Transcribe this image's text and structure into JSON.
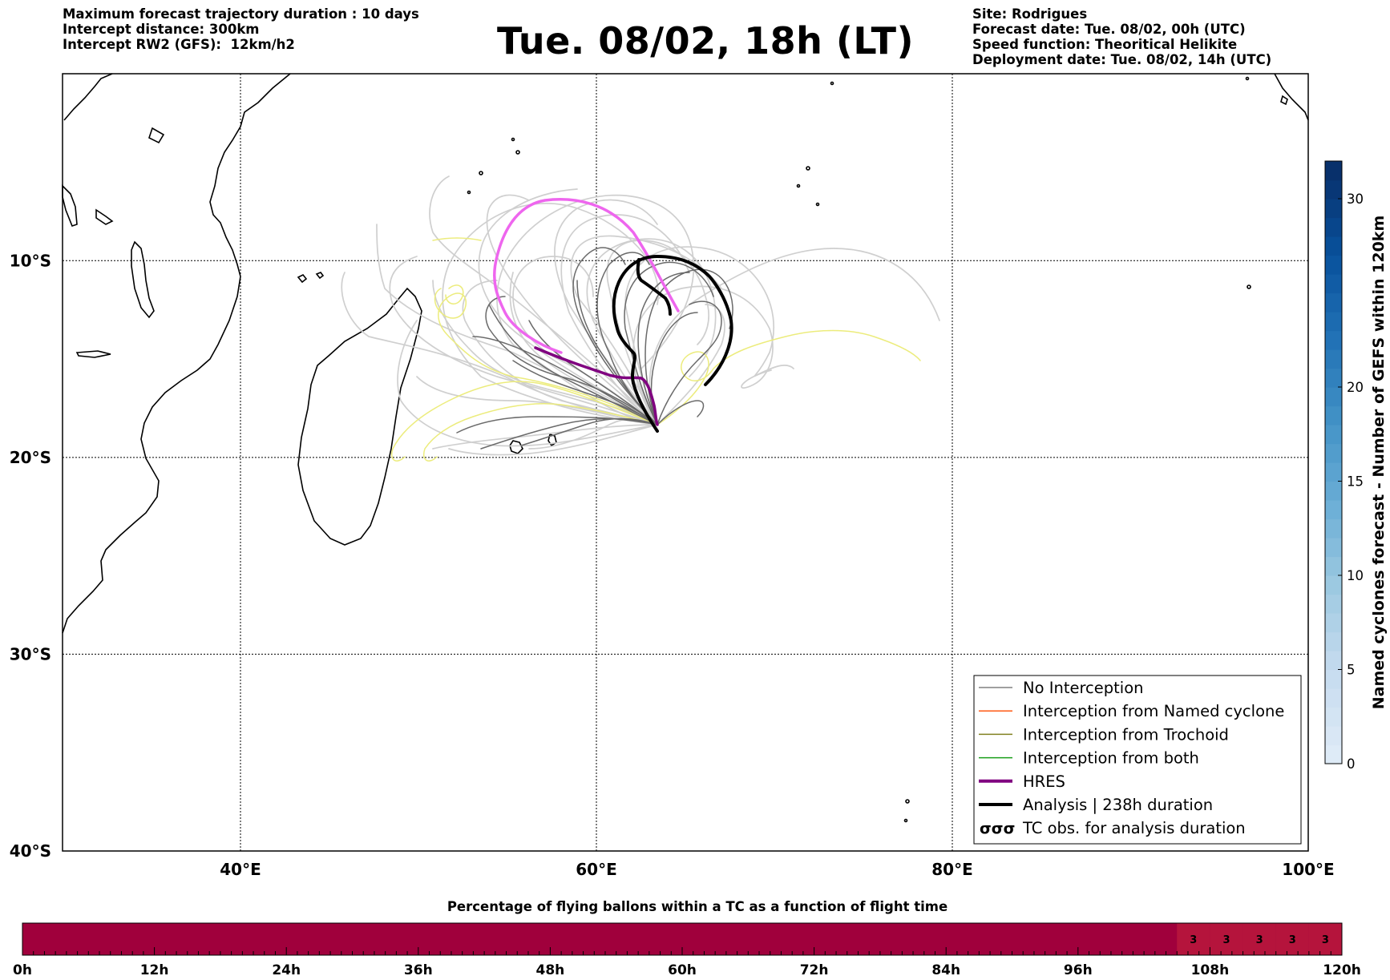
{
  "header": {
    "left_lines": [
      "Maximum forecast trajectory duration : 10 days",
      "Intercept distance: 300km",
      "Intercept RW2 (GFS):  12km/h2"
    ],
    "title": "Tue. 08/02, 18h (LT)",
    "right_lines": [
      "Site: Rodrigues",
      "Forecast date: Tue. 08/02, 00h (UTC)",
      "Speed function: Theoritical Helikite",
      "Deployment date: Tue. 08/02, 14h (UTC)"
    ]
  },
  "map": {
    "lon_ticks": [
      {
        "lon": 40,
        "label": "40°E"
      },
      {
        "lon": 60,
        "label": "60°E"
      },
      {
        "lon": 80,
        "label": "80°E"
      },
      {
        "lon": 100,
        "label": "100°E"
      }
    ],
    "lat_ticks": [
      {
        "lat": -10,
        "label": "10°S"
      },
      {
        "lat": -20,
        "label": "20°S"
      },
      {
        "lat": -30,
        "label": "30°S"
      },
      {
        "lat": -40,
        "label": "40°S"
      }
    ],
    "extent": {
      "lon": [
        30,
        100
      ],
      "lat": [
        -40,
        -0.5
      ]
    },
    "grid": true
  },
  "legend": {
    "items": [
      {
        "label": "No Interception",
        "color": "#808080",
        "style": "thin"
      },
      {
        "label": "Interception from Named cyclone",
        "color": "#ff5a14",
        "style": "thin"
      },
      {
        "label": "Interception from Trochoid",
        "color": "#808020",
        "style": "thin"
      },
      {
        "label": "Interception from both",
        "color": "#1a9e1a",
        "style": "thin"
      },
      {
        "label": "HRES",
        "color": "#800080",
        "style": "thick"
      },
      {
        "label": "Analysis | 238h duration",
        "color": "#000000",
        "style": "thick"
      },
      {
        "label": "TC obs. for analysis duration",
        "color": "#000000",
        "style": "symbol"
      }
    ]
  },
  "colorbar": {
    "label": "Named cyclones forecast - Number of GEFS within 120km",
    "min": 0,
    "max": 32,
    "ticks": [
      "0",
      "5",
      "10",
      "15",
      "20",
      "30"
    ],
    "tick_values": [
      0,
      5,
      10,
      15,
      20,
      30
    ]
  },
  "bottom_bar": {
    "title": "Percentage of flying ballons within a TC as a function of flight time",
    "tick_labels": [
      "0h",
      "12h",
      "24h",
      "36h",
      "48h",
      "60h",
      "72h",
      "84h",
      "96h",
      "108h",
      "120h"
    ],
    "cells_label": "3",
    "cells_start_hour": 105,
    "cells_count": 5,
    "cells_values": [
      3,
      3,
      3,
      3,
      3
    ],
    "base_color": "#a0003c",
    "cell_color": "#b5143c"
  },
  "colors": {
    "no_interception": "#808080",
    "light_track": "#cfcfcf",
    "trochoid_yellow": "#ecec7c",
    "hres": "#800080",
    "hres_pink": "#ee66ee",
    "analysis": "#000000"
  }
}
